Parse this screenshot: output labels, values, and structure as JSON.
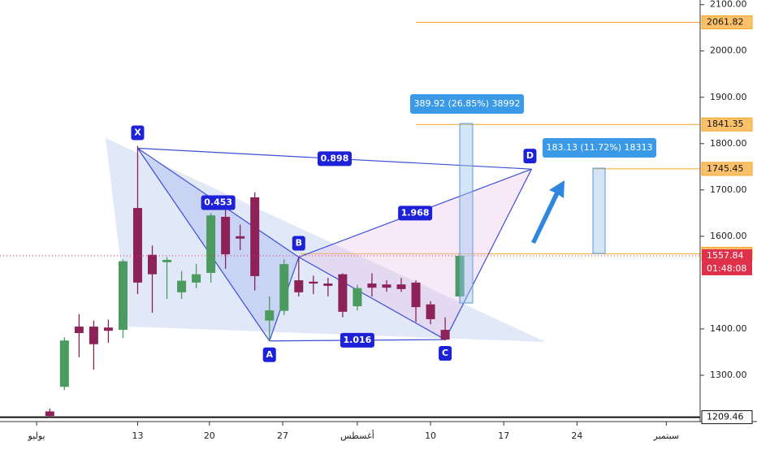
{
  "chart_data": {
    "type": "candlestick",
    "x": [
      0,
      1,
      2,
      3,
      4,
      5,
      6,
      7,
      8,
      9,
      10,
      11,
      12,
      13,
      14,
      15,
      16,
      17,
      18,
      19,
      20,
      21,
      22,
      23,
      24,
      25,
      26,
      27,
      28
    ],
    "open": [
      1222,
      1275,
      1405,
      1405,
      1403,
      1398,
      1661,
      1560,
      1544,
      1479,
      1500,
      1521,
      1642,
      1600,
      1684,
      1418,
      1439,
      1505,
      1502,
      1498,
      1518,
      1449,
      1498,
      1496,
      1496,
      1500,
      1453,
      1398,
      1470
    ],
    "close": [
      1212,
      1375,
      1391,
      1367,
      1396,
      1546,
      1500,
      1518,
      1549,
      1504,
      1518,
      1645,
      1561,
      1595,
      1514,
      1440,
      1540,
      1479,
      1498,
      1493,
      1437,
      1488,
      1489,
      1489,
      1486,
      1447,
      1421,
      1377,
      1557.84
    ],
    "high": [
      1228,
      1382,
      1432,
      1418,
      1420,
      1550,
      1795,
      1580,
      1555,
      1525,
      1540,
      1650,
      1660,
      1625,
      1695,
      1470,
      1550,
      1555,
      1515,
      1510,
      1520,
      1495,
      1520,
      1505,
      1510,
      1505,
      1460,
      1425,
      1560
    ],
    "low": [
      1208,
      1268,
      1339,
      1312,
      1370,
      1380,
      1475,
      1435,
      1465,
      1465,
      1488,
      1500,
      1530,
      1570,
      1483,
      1374,
      1430,
      1470,
      1475,
      1470,
      1425,
      1440,
      1470,
      1480,
      1480,
      1415,
      1410,
      1375,
      1455
    ],
    "up_color": "#4b9a5f",
    "down_color": "#8c2257",
    "xlim": [
      -3.4,
      44.3
    ],
    "ylim": [
      1200,
      2110
    ],
    "xticks": [
      {
        "value": -0.9,
        "label": "يوليو"
      },
      {
        "value": 6,
        "label": "13"
      },
      {
        "value": 10.9,
        "label": "20"
      },
      {
        "value": 15.9,
        "label": "27"
      },
      {
        "value": 21,
        "label": "أغسطس"
      },
      {
        "value": 26,
        "label": "10"
      },
      {
        "value": 31,
        "label": "17"
      },
      {
        "value": 36,
        "label": "24"
      },
      {
        "value": 42.1,
        "label": "سبتمبر"
      }
    ],
    "yticks": [
      {
        "value": 2100,
        "label": "2100.00"
      },
      {
        "value": 2000,
        "label": "2000.00"
      },
      {
        "value": 1900,
        "label": "1900.00"
      },
      {
        "value": 1800,
        "label": "1800.00"
      },
      {
        "value": 1700,
        "label": "1700.00"
      },
      {
        "value": 1600,
        "label": "1600.00"
      },
      {
        "value": 1400,
        "label": "1400.00"
      },
      {
        "value": 1300,
        "label": "1300.00"
      }
    ],
    "levels": [
      2061.82,
      1841.35,
      1745.45,
      1562.32,
      1209.46
    ],
    "level_color": "#f5a623",
    "last_price": 1557.84,
    "countdown": "01:48:08",
    "pattern": {
      "points": [
        {
          "label": "X",
          "x": 6,
          "y": 1790
        },
        {
          "label": "A",
          "x": 15,
          "y": 1374
        },
        {
          "label": "B",
          "x": 17,
          "y": 1555
        },
        {
          "label": "C",
          "x": 27,
          "y": 1377
        },
        {
          "label": "D",
          "x": 32.9,
          "y": 1745
        }
      ],
      "ratios": [
        0.453,
        0.898,
        1.016,
        1.968
      ]
    },
    "measures": [
      "389.92 (26.85%) 38992",
      "183.13 (11.72%) 18313"
    ]
  }
}
